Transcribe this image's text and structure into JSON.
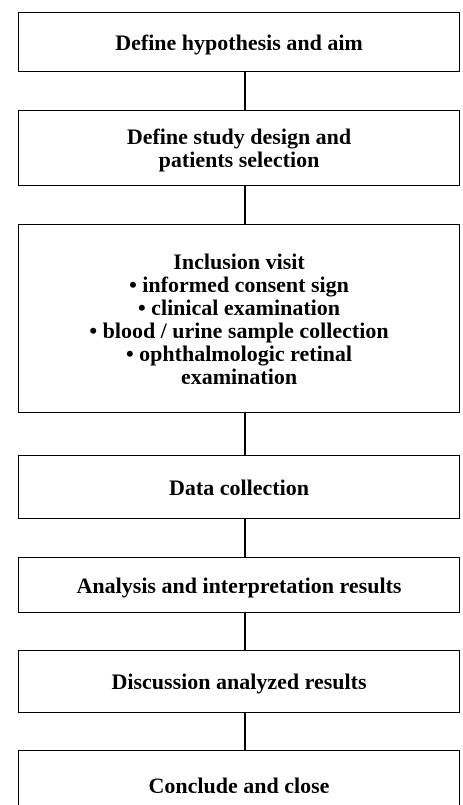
{
  "nodes": [
    {
      "lines": [
        "Define hypothesis and aim"
      ]
    },
    {
      "lines": [
        "Define study design and",
        "patients selection"
      ]
    },
    {
      "lines": [
        "Inclusion visit",
        "• informed consent sign",
        "• clinical examination",
        "• blood / urine sample collection",
        "• ophthalmologic retinal",
        "examination"
      ]
    },
    {
      "lines": [
        "Data collection"
      ]
    },
    {
      "lines": [
        "Analysis and interpretation results"
      ]
    },
    {
      "lines": [
        "Discussion analyzed results"
      ]
    },
    {
      "lines": [
        "Conclude and close"
      ]
    }
  ]
}
